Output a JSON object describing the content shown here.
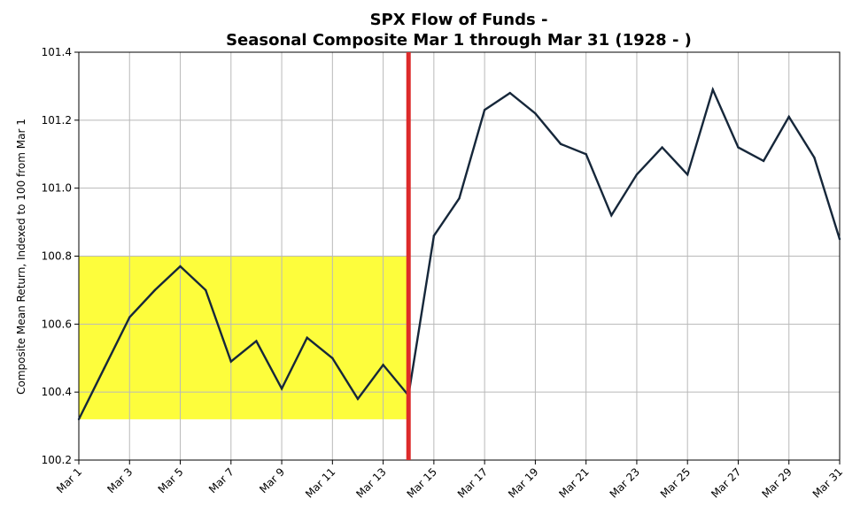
{
  "chart_data": {
    "type": "line",
    "title": "SPX Flow of Funds -",
    "subtitle": "Seasonal Composite Mar 1 through Mar 31 (1928 - )",
    "xlabel": "",
    "ylabel": "Composite Mean Return, Indexed to 100 from Mar 1",
    "ylim": [
      100.2,
      101.4
    ],
    "yticks": [
      100.2,
      100.4,
      100.6,
      100.8,
      101.0,
      101.2,
      101.4
    ],
    "ytick_labels": [
      "100.2",
      "100.4",
      "100.6",
      "100.8",
      "101.0",
      "101.2",
      "101.4"
    ],
    "x_days": [
      1,
      2,
      3,
      4,
      5,
      6,
      7,
      8,
      9,
      10,
      11,
      12,
      13,
      14,
      15,
      16,
      17,
      18,
      19,
      20,
      21,
      22,
      23,
      24,
      25,
      26,
      27,
      28,
      29,
      30,
      31
    ],
    "xlim": [
      1,
      31
    ],
    "xticks": [
      1,
      3,
      5,
      7,
      9,
      11,
      13,
      15,
      17,
      19,
      21,
      23,
      25,
      27,
      29,
      31
    ],
    "xtick_labels": [
      "Mar 1",
      "Mar 3",
      "Mar 5",
      "Mar 7",
      "Mar 9",
      "Mar 11",
      "Mar 13",
      "Mar 15",
      "Mar 17",
      "Mar 19",
      "Mar 21",
      "Mar 23",
      "Mar 25",
      "Mar 27",
      "Mar 29",
      "Mar 31"
    ],
    "grid": true,
    "series": [
      {
        "name": "Seasonal Composite",
        "color": "#16273a",
        "values": [
          100.32,
          100.47,
          100.62,
          100.7,
          100.77,
          100.7,
          100.49,
          100.55,
          100.41,
          100.56,
          100.5,
          100.38,
          100.48,
          100.39,
          100.86,
          100.97,
          101.23,
          101.28,
          101.22,
          101.13,
          101.1,
          100.92,
          101.04,
          101.12,
          101.04,
          101.29,
          101.12,
          101.08,
          101.21,
          101.09,
          100.85
        ]
      }
    ],
    "highlight_region": {
      "x_start": 1,
      "x_end": 14,
      "y_start": 100.32,
      "y_end": 100.8,
      "color": "#fdfd3c"
    },
    "vertical_line": {
      "x": 14,
      "color": "#dd2a2a"
    }
  }
}
